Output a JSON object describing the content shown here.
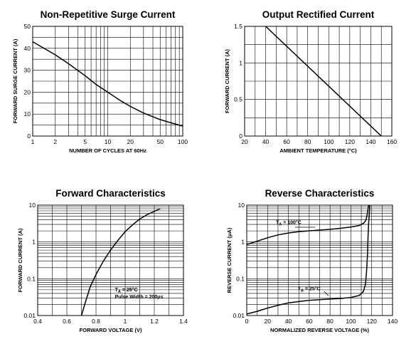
{
  "chart_data": [
    {
      "type": "line",
      "title": "Non-Repetitive Surge Current",
      "xlabel": "NUMBER OF CYCLES AT 60Hz",
      "ylabel": "FORWARD SURGE CURRENT (A)",
      "xscale": "log",
      "yscale": "linear",
      "xlim": [
        1,
        100
      ],
      "ylim": [
        0,
        50
      ],
      "xticks": [
        1,
        2,
        5,
        10,
        20,
        50,
        100
      ],
      "xtick_labels": [
        "1",
        "2",
        "5",
        "10",
        "20",
        "50",
        "100"
      ],
      "yticks": [
        0,
        10,
        20,
        30,
        40,
        50
      ],
      "ytick_labels": [
        "0",
        "10",
        "20",
        "30",
        "40",
        "50"
      ],
      "grid": true,
      "series": [
        {
          "x": [
            1,
            2,
            3,
            5,
            7,
            10,
            15,
            20,
            30,
            50,
            70,
            100
          ],
          "y": [
            43,
            37,
            33,
            27.5,
            23.5,
            20,
            16,
            13.5,
            10.5,
            7.5,
            6,
            4.5
          ]
        }
      ]
    },
    {
      "type": "line",
      "title": "Output Rectified Current",
      "xlabel": "AMBIENT TEMPERATURE (°C)",
      "ylabel": "FORWARD CURRENT (A)",
      "xscale": "linear",
      "yscale": "linear",
      "xlim": [
        20,
        160
      ],
      "ylim": [
        0,
        1.5
      ],
      "xticks": [
        20,
        40,
        60,
        80,
        100,
        120,
        140,
        160
      ],
      "xtick_labels": [
        "20",
        "40",
        "60",
        "80",
        "100",
        "120",
        "140",
        "160"
      ],
      "yticks": [
        0,
        0.5,
        1,
        1.5
      ],
      "ytick_labels": [
        "0",
        "0.5",
        "1",
        "1.5"
      ],
      "grid": true,
      "series": [
        {
          "x": [
            40,
            150
          ],
          "y": [
            1.5,
            0
          ]
        }
      ]
    },
    {
      "type": "line",
      "title": "Forward Characteristics",
      "xlabel": "FORWARD VOLTAGE (V)",
      "ylabel": "FORWARD CURRENT (A)",
      "xscale": "linear",
      "yscale": "log",
      "xlim": [
        0.4,
        1.4
      ],
      "ylim": [
        0.01,
        10
      ],
      "xticks": [
        0.4,
        0.6,
        0.8,
        1.0,
        1.2,
        1.4
      ],
      "xtick_labels": [
        "0.4",
        "0.6",
        "0.8",
        "1",
        "1.2",
        "1.4"
      ],
      "yticks": [
        0.01,
        0.1,
        1,
        10
      ],
      "ytick_labels": [
        "0.01",
        "0.1",
        "1",
        "10"
      ],
      "grid": true,
      "annotations": [
        {
          "lines": [
            {
              "pre": "T",
              "sub": "A",
              "post": " = 25°C"
            },
            {
              "pre": "Pulse Width = 200μs",
              "sub": "",
              "post": ""
            }
          ]
        }
      ],
      "series": [
        {
          "x": [
            0.7,
            0.73,
            0.76,
            0.8,
            0.85,
            0.9,
            0.95,
            1.0,
            1.05,
            1.1,
            1.15,
            1.24
          ],
          "y": [
            0.01,
            0.025,
            0.06,
            0.13,
            0.3,
            0.6,
            1.1,
            1.9,
            2.9,
            4.2,
            5.5,
            8
          ]
        }
      ]
    },
    {
      "type": "line",
      "title": "Reverse Characteristics",
      "xlabel": "NORMALIZED REVERSE VOLTAGE (%)",
      "ylabel": "REVERSE CURRENT (μA)",
      "xscale": "linear",
      "yscale": "log",
      "xlim": [
        0,
        140
      ],
      "ylim": [
        0.01,
        10
      ],
      "xticks": [
        0,
        20,
        40,
        60,
        80,
        100,
        120,
        140
      ],
      "xtick_labels": [
        "0",
        "20",
        "40",
        "60",
        "80",
        "100",
        "120",
        "140"
      ],
      "yticks": [
        0.01,
        0.1,
        1,
        10
      ],
      "ytick_labels": [
        "0.01",
        "0.1",
        "1",
        "10"
      ],
      "grid": true,
      "series": [
        {
          "name_parts": {
            "pre": "T",
            "sub": "A",
            "post": " = 100°C"
          },
          "x": [
            0,
            10,
            20,
            30,
            40,
            50,
            60,
            70,
            80,
            90,
            100,
            108,
            112,
            114,
            115,
            116,
            117
          ],
          "y": [
            0.85,
            1.05,
            1.3,
            1.55,
            1.75,
            1.9,
            2.0,
            2.1,
            2.2,
            2.35,
            2.55,
            2.8,
            3.2,
            3.7,
            4.5,
            6.5,
            10
          ]
        },
        {
          "name_parts": {
            "pre": "T",
            "sub": "A",
            "post": " = 25°C"
          },
          "x": [
            0,
            10,
            20,
            30,
            40,
            50,
            60,
            70,
            80,
            90,
            100,
            108,
            112,
            114,
            115,
            116,
            116.5,
            117,
            117.5,
            118,
            118
          ],
          "y": [
            0.011,
            0.013,
            0.016,
            0.019,
            0.022,
            0.024,
            0.026,
            0.027,
            0.028,
            0.029,
            0.031,
            0.035,
            0.045,
            0.07,
            0.15,
            0.5,
            1.5,
            3,
            5,
            8,
            10
          ]
        }
      ]
    }
  ]
}
